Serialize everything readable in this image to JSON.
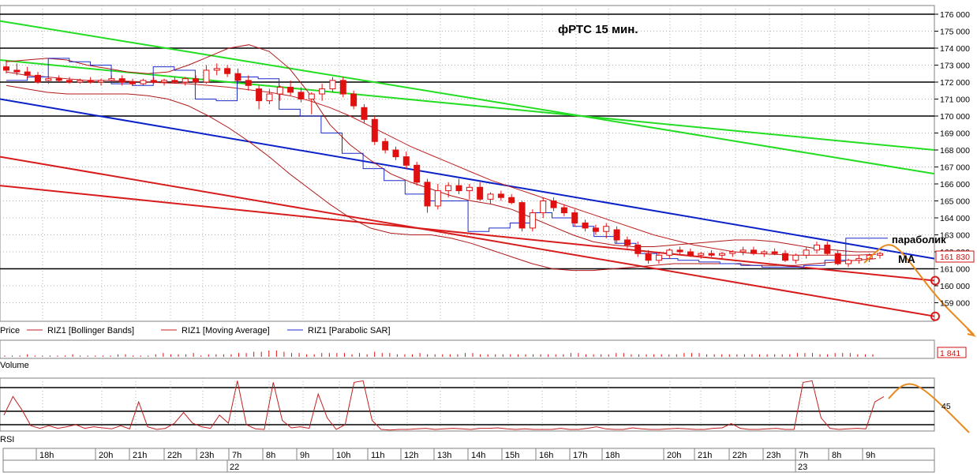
{
  "colors": {
    "bear_candle": "#e01010",
    "bull_candle": "#ffffff",
    "bollinger": "#b01818",
    "moving_average": "#c02020",
    "parabolic": "#1c2ccc",
    "green_trend": "#22dd22",
    "blue_trend": "#0a22c8",
    "red_trend": "#d81c1c",
    "forecast": "#e88a1e",
    "level_line": "#000000",
    "current_price_box": "#d01010"
  },
  "chart_data": [
    {
      "type": "candlestick",
      "title": "фРТС   15 мин.",
      "y_ticks": [
        "176 000",
        "175 000",
        "174 000",
        "173 000",
        "172 000",
        "171 000",
        "170 000",
        "169 000",
        "168 000",
        "167 000",
        "166 000",
        "165 000",
        "164 000",
        "163 000",
        "162 000",
        "161 000",
        "160 000",
        "159 000"
      ],
      "ylim": [
        158200,
        176500
      ],
      "x_ticks": [
        "18h",
        "20h",
        "21h",
        "22h",
        "23h",
        "7h",
        "8h",
        "9h",
        "10h",
        "11h",
        "12h",
        "13h",
        "14h",
        "15h",
        "16h",
        "17h",
        "18h",
        "20h",
        "21h",
        "22h",
        "23h",
        "7h",
        "8h",
        "9h"
      ],
      "date_labels": [
        "22",
        "23"
      ],
      "current_price": "161 830",
      "horizontal_levels": [
        176000,
        174000,
        172000,
        170000,
        161000
      ],
      "candles": [
        {
          "o": 172.9,
          "h": 173.3,
          "l": 172.5,
          "c": 172.7
        },
        {
          "o": 172.7,
          "h": 173.1,
          "l": 172.4,
          "c": 172.6
        },
        {
          "o": 172.6,
          "h": 172.9,
          "l": 172.2,
          "c": 172.4
        },
        {
          "o": 172.4,
          "h": 172.6,
          "l": 171.9,
          "c": 172.0
        },
        {
          "o": 172.1,
          "h": 172.4,
          "l": 171.9,
          "c": 172.2
        },
        {
          "o": 172.2,
          "h": 172.4,
          "l": 172.0,
          "c": 172.1
        },
        {
          "o": 172.1,
          "h": 172.3,
          "l": 171.9,
          "c": 172.0
        },
        {
          "o": 172.0,
          "h": 172.2,
          "l": 171.9,
          "c": 172.1
        },
        {
          "o": 172.1,
          "h": 172.3,
          "l": 171.9,
          "c": 172.0
        },
        {
          "o": 172.0,
          "h": 172.2,
          "l": 171.8,
          "c": 172.1
        },
        {
          "o": 172.1,
          "h": 172.4,
          "l": 172.0,
          "c": 172.2
        },
        {
          "o": 172.2,
          "h": 172.4,
          "l": 171.8,
          "c": 172.0
        },
        {
          "o": 172.0,
          "h": 172.2,
          "l": 171.8,
          "c": 171.9
        },
        {
          "o": 171.9,
          "h": 172.2,
          "l": 171.8,
          "c": 172.1
        },
        {
          "o": 172.1,
          "h": 172.3,
          "l": 171.9,
          "c": 172.0
        },
        {
          "o": 172.0,
          "h": 172.2,
          "l": 171.8,
          "c": 172.1
        },
        {
          "o": 172.1,
          "h": 172.3,
          "l": 171.9,
          "c": 172.0
        },
        {
          "o": 172.0,
          "h": 172.3,
          "l": 171.8,
          "c": 172.2
        },
        {
          "o": 172.2,
          "h": 172.4,
          "l": 171.9,
          "c": 172.0
        },
        {
          "o": 172.0,
          "h": 173.0,
          "l": 171.9,
          "c": 172.7
        },
        {
          "o": 172.7,
          "h": 173.1,
          "l": 172.4,
          "c": 172.8
        },
        {
          "o": 172.8,
          "h": 173.0,
          "l": 172.3,
          "c": 172.5
        },
        {
          "o": 172.5,
          "h": 172.8,
          "l": 171.9,
          "c": 172.1
        },
        {
          "o": 172.1,
          "h": 172.4,
          "l": 171.5,
          "c": 171.8
        },
        {
          "o": 171.6,
          "h": 171.8,
          "l": 170.4,
          "c": 170.9
        },
        {
          "o": 170.9,
          "h": 171.6,
          "l": 170.7,
          "c": 171.3
        },
        {
          "o": 171.3,
          "h": 171.8,
          "l": 170.9,
          "c": 171.7
        },
        {
          "o": 171.7,
          "h": 172.1,
          "l": 171.2,
          "c": 171.4
        },
        {
          "o": 171.4,
          "h": 171.7,
          "l": 170.8,
          "c": 171.0
        },
        {
          "o": 171.0,
          "h": 171.4,
          "l": 170.1,
          "c": 171.3
        },
        {
          "o": 171.3,
          "h": 171.9,
          "l": 170.9,
          "c": 171.6
        },
        {
          "o": 171.6,
          "h": 172.3,
          "l": 171.4,
          "c": 172.1
        },
        {
          "o": 172.1,
          "h": 172.3,
          "l": 171.1,
          "c": 171.3
        },
        {
          "o": 171.3,
          "h": 171.5,
          "l": 170.4,
          "c": 170.6
        },
        {
          "o": 170.5,
          "h": 170.7,
          "l": 169.6,
          "c": 169.8
        },
        {
          "o": 169.8,
          "h": 170.0,
          "l": 168.3,
          "c": 168.5
        },
        {
          "o": 168.5,
          "h": 168.7,
          "l": 167.8,
          "c": 168.0
        },
        {
          "o": 168.0,
          "h": 168.2,
          "l": 167.4,
          "c": 167.6
        },
        {
          "o": 167.6,
          "h": 167.9,
          "l": 166.9,
          "c": 167.1
        },
        {
          "o": 167.1,
          "h": 167.3,
          "l": 165.9,
          "c": 166.1
        },
        {
          "o": 166.1,
          "h": 166.3,
          "l": 164.3,
          "c": 164.7
        },
        {
          "o": 164.7,
          "h": 166.0,
          "l": 164.5,
          "c": 165.6
        },
        {
          "o": 165.6,
          "h": 166.1,
          "l": 165.2,
          "c": 165.9
        },
        {
          "o": 165.9,
          "h": 166.3,
          "l": 165.4,
          "c": 165.6
        },
        {
          "o": 165.6,
          "h": 166.0,
          "l": 165.1,
          "c": 165.8
        },
        {
          "o": 165.8,
          "h": 166.1,
          "l": 165.0,
          "c": 165.1
        },
        {
          "o": 165.1,
          "h": 165.5,
          "l": 164.8,
          "c": 165.4
        },
        {
          "o": 165.4,
          "h": 165.6,
          "l": 165.0,
          "c": 165.2
        },
        {
          "o": 165.2,
          "h": 165.4,
          "l": 164.8,
          "c": 164.9
        },
        {
          "o": 164.9,
          "h": 165.0,
          "l": 163.2,
          "c": 163.4
        },
        {
          "o": 163.4,
          "h": 164.5,
          "l": 163.2,
          "c": 164.3
        },
        {
          "o": 164.3,
          "h": 165.2,
          "l": 164.0,
          "c": 165.0
        },
        {
          "o": 165.0,
          "h": 165.2,
          "l": 164.4,
          "c": 164.6
        },
        {
          "o": 164.6,
          "h": 164.8,
          "l": 164.1,
          "c": 164.3
        },
        {
          "o": 164.3,
          "h": 164.5,
          "l": 163.5,
          "c": 163.7
        },
        {
          "o": 163.7,
          "h": 163.9,
          "l": 163.2,
          "c": 163.4
        },
        {
          "o": 163.4,
          "h": 163.6,
          "l": 163.0,
          "c": 163.2
        },
        {
          "o": 163.2,
          "h": 163.7,
          "l": 162.8,
          "c": 163.5
        },
        {
          "o": 163.3,
          "h": 163.5,
          "l": 162.5,
          "c": 162.7
        },
        {
          "o": 162.7,
          "h": 162.9,
          "l": 162.2,
          "c": 162.4
        },
        {
          "o": 162.4,
          "h": 162.6,
          "l": 161.7,
          "c": 161.9
        },
        {
          "o": 161.9,
          "h": 162.1,
          "l": 161.3,
          "c": 161.5
        },
        {
          "o": 161.5,
          "h": 162.0,
          "l": 161.3,
          "c": 161.8
        },
        {
          "o": 161.8,
          "h": 162.2,
          "l": 161.6,
          "c": 162.1
        },
        {
          "o": 162.1,
          "h": 162.3,
          "l": 161.8,
          "c": 162.0
        },
        {
          "o": 162.0,
          "h": 162.2,
          "l": 161.7,
          "c": 161.8
        },
        {
          "o": 161.8,
          "h": 162.0,
          "l": 161.6,
          "c": 161.9
        },
        {
          "o": 161.9,
          "h": 162.1,
          "l": 161.7,
          "c": 161.8
        },
        {
          "o": 161.8,
          "h": 162.0,
          "l": 161.6,
          "c": 161.9
        },
        {
          "o": 161.9,
          "h": 162.1,
          "l": 161.7,
          "c": 162.0
        },
        {
          "o": 162.0,
          "h": 162.3,
          "l": 161.8,
          "c": 162.1
        },
        {
          "o": 162.1,
          "h": 162.3,
          "l": 161.8,
          "c": 161.9
        },
        {
          "o": 161.9,
          "h": 162.1,
          "l": 161.7,
          "c": 162.0
        },
        {
          "o": 162.0,
          "h": 162.2,
          "l": 161.8,
          "c": 161.9
        },
        {
          "o": 161.9,
          "h": 162.1,
          "l": 161.4,
          "c": 161.5
        },
        {
          "o": 161.5,
          "h": 161.9,
          "l": 161.3,
          "c": 161.8
        },
        {
          "o": 161.8,
          "h": 162.3,
          "l": 161.6,
          "c": 162.1
        },
        {
          "o": 162.1,
          "h": 162.6,
          "l": 161.9,
          "c": 162.4
        },
        {
          "o": 162.4,
          "h": 162.6,
          "l": 161.8,
          "c": 161.9
        },
        {
          "o": 161.9,
          "h": 162.1,
          "l": 161.2,
          "c": 161.3
        },
        {
          "o": 161.3,
          "h": 161.6,
          "l": 161.1,
          "c": 161.5
        },
        {
          "o": 161.5,
          "h": 161.8,
          "l": 161.3,
          "c": 161.6
        },
        {
          "o": 161.6,
          "h": 161.9,
          "l": 161.4,
          "c": 161.8
        },
        {
          "o": 161.8,
          "h": 162.0,
          "l": 161.6,
          "c": 161.9
        }
      ],
      "moving_average": [
        172.6,
        172.4,
        172.3,
        172.2,
        172.1,
        172.1,
        172.05,
        172.0,
        171.95,
        171.9,
        171.8,
        171.7,
        171.55,
        171.4,
        171.2,
        170.9,
        170.5,
        170.0,
        169.4,
        168.8,
        168.2,
        167.7,
        167.2,
        166.7,
        166.2,
        165.8,
        165.4,
        165.0,
        164.6,
        164.2,
        163.8,
        163.4,
        163.0,
        162.7,
        162.4,
        162.2,
        162.0,
        161.9,
        161.85,
        161.8,
        161.8,
        161.8,
        161.8,
        161.85
      ],
      "bollinger_upper": [
        173.2,
        173.3,
        173.4,
        173.3,
        173.0,
        172.8,
        172.6,
        172.5,
        172.6,
        173.0,
        173.5,
        174.0,
        174.2,
        173.8,
        172.8,
        171.3,
        169.5,
        168.3,
        167.4,
        166.6,
        166.1,
        165.7,
        165.3,
        165.0,
        164.8,
        164.5,
        164.0,
        163.5,
        163.0,
        162.6,
        162.4,
        162.3,
        162.3,
        162.4,
        162.5,
        162.6,
        162.7,
        162.7,
        162.6,
        162.4,
        162.2,
        162.1,
        162.0,
        162.0
      ],
      "bollinger_lower": [
        171.8,
        171.6,
        171.4,
        171.3,
        171.3,
        171.3,
        171.3,
        171.2,
        171.0,
        170.6,
        170.0,
        169.3,
        168.5,
        167.6,
        166.6,
        165.7,
        164.8,
        164.0,
        163.4,
        163.1,
        163.0,
        163.0,
        162.8,
        162.5,
        162.1,
        161.7,
        161.3,
        161.0,
        160.9,
        160.9,
        161.0,
        161.1,
        161.2,
        161.3,
        161.3,
        161.3,
        161.3,
        161.2,
        161.2,
        161.2,
        161.3,
        161.4,
        161.5,
        161.6
      ],
      "parabolic_sar": [
        172.1,
        172.3,
        173.4,
        173.2,
        173.0,
        171.9,
        171.8,
        172.9,
        172.7,
        171.0,
        170.9,
        172.3,
        172.2,
        170.4,
        170.0,
        169.0,
        167.8,
        166.9,
        166.2,
        165.4,
        165.0,
        165.0,
        163.2,
        163.4,
        163.7,
        164.3,
        164.0,
        163.5,
        162.9,
        162.5,
        161.9,
        161.6,
        161.5,
        161.4,
        161.3,
        161.2,
        161.1,
        161.1,
        161.2,
        161.5,
        162.8,
        162.8,
        162.8
      ],
      "annotations": [
        "параболик",
        "MA"
      ]
    },
    {
      "type": "bar",
      "title": "Volume",
      "current_value": "1 841",
      "values": [
        1,
        1,
        1,
        2,
        1,
        1,
        1,
        1,
        1,
        2,
        1,
        1,
        1,
        1,
        1,
        2,
        2,
        1,
        1,
        1,
        2,
        3,
        2,
        2,
        2,
        3,
        1,
        2,
        2,
        2,
        2,
        3,
        3,
        4,
        4,
        5,
        5,
        4,
        3,
        3,
        2,
        2,
        3,
        3,
        3,
        3,
        2,
        3,
        2,
        4,
        3,
        3,
        2,
        2,
        2,
        3,
        2,
        2,
        2,
        2,
        2,
        3,
        3,
        2,
        2,
        2,
        2,
        2,
        2,
        2,
        2,
        2,
        2,
        2,
        2,
        3,
        3,
        2,
        2,
        2,
        2,
        3,
        3,
        2,
        2,
        2,
        2,
        2,
        2,
        2,
        3,
        3,
        3,
        2,
        2,
        2,
        2,
        2,
        2,
        2,
        2,
        2,
        2,
        2,
        2,
        3,
        3,
        3,
        2,
        2,
        3,
        3,
        3,
        2,
        2,
        2
      ]
    },
    {
      "type": "line",
      "title": "RSI",
      "level_label": "45",
      "values": [
        30,
        65,
        40,
        10,
        5,
        10,
        5,
        8,
        12,
        5,
        8,
        6,
        4,
        10,
        4,
        55,
        8,
        3,
        5,
        15,
        35,
        15,
        8,
        5,
        30,
        15,
        95,
        12,
        4,
        3,
        92,
        20,
        6,
        8,
        5,
        70,
        25,
        3,
        12,
        92,
        95,
        20,
        3,
        2,
        3,
        3,
        4,
        5,
        3,
        4,
        5,
        4,
        3,
        5,
        5,
        6,
        4,
        3,
        4,
        3,
        3,
        3,
        5,
        3,
        3,
        5,
        8,
        4,
        3,
        3,
        6,
        4,
        3,
        3,
        4,
        5,
        4,
        3,
        3,
        5,
        6,
        14,
        5,
        3,
        3,
        4,
        5,
        3,
        3,
        92,
        95,
        25,
        5,
        3,
        4,
        5,
        4,
        55,
        65
      ]
    }
  ],
  "legend": {
    "price": "Price",
    "bollinger": "RIZ1 [Bollinger Bands]",
    "ma": "RIZ1 [Moving Average]",
    "sar": "RIZ1 [Parabolic SAR]"
  },
  "panels": {
    "volume_title": "Volume",
    "rsi_title": "RSI"
  }
}
